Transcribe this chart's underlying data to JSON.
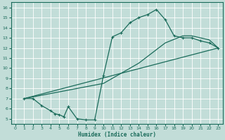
{
  "xlabel": "Humidex (Indice chaleur)",
  "xlim": [
    -0.5,
    23.5
  ],
  "ylim": [
    4.5,
    16.5
  ],
  "xticks": [
    0,
    1,
    2,
    3,
    4,
    5,
    6,
    7,
    8,
    9,
    10,
    11,
    12,
    13,
    14,
    15,
    16,
    17,
    18,
    19,
    20,
    21,
    22,
    23
  ],
  "yticks": [
    5,
    6,
    7,
    8,
    9,
    10,
    11,
    12,
    13,
    14,
    15,
    16
  ],
  "bg_color": "#c2ddd8",
  "line_color": "#1a6b5a",
  "curve1_x": [
    1,
    2,
    3,
    4,
    4.5,
    5,
    5.5,
    6,
    7,
    8,
    9,
    10,
    11,
    12,
    13,
    14,
    15,
    16,
    17,
    18,
    19,
    20,
    21,
    22,
    23
  ],
  "curve1_y": [
    7,
    7,
    6.3,
    5.8,
    5.5,
    5.4,
    5.2,
    6.2,
    5.0,
    4.9,
    4.9,
    9.3,
    13.1,
    13.5,
    14.5,
    15.0,
    15.3,
    15.8,
    14.8,
    13.2,
    13.0,
    13.0,
    12.7,
    12.5,
    12.0
  ],
  "curve2_x": [
    1,
    23
  ],
  "curve2_y": [
    7,
    12.0
  ],
  "curve3_x": [
    1,
    10,
    14,
    17,
    19,
    20,
    21,
    22,
    23
  ],
  "curve3_y": [
    7,
    8.5,
    10.5,
    12.5,
    13.2,
    13.2,
    13.0,
    12.8,
    12.0
  ]
}
